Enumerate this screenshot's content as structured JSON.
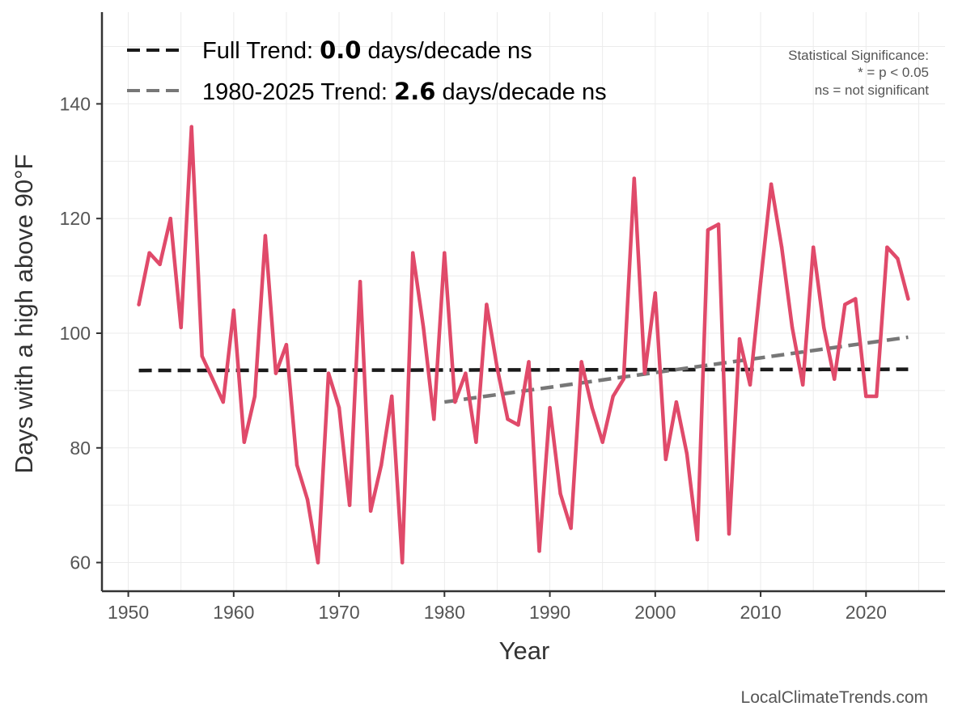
{
  "chart_data": {
    "type": "line",
    "title": "",
    "xlabel": "Year",
    "ylabel": "Days with a high above 90°F",
    "xlim": [
      1947.5,
      2027.5
    ],
    "ylim": [
      55,
      156
    ],
    "xticks": [
      1950,
      1960,
      1970,
      1980,
      1990,
      2000,
      2010,
      2020
    ],
    "yticks": [
      60,
      80,
      100,
      120,
      140
    ],
    "grid": true,
    "series": [
      {
        "color": "#e04a6a",
        "x": [
          1951,
          1952,
          1953,
          1954,
          1955,
          1956,
          1957,
          1958,
          1959,
          1960,
          1961,
          1962,
          1963,
          1964,
          1965,
          1966,
          1967,
          1968,
          1969,
          1970,
          1971,
          1972,
          1973,
          1974,
          1975,
          1976,
          1977,
          1978,
          1979,
          1980,
          1981,
          1982,
          1983,
          1984,
          1985,
          1986,
          1987,
          1988,
          1989,
          1990,
          1991,
          1992,
          1993,
          1994,
          1995,
          1996,
          1997,
          1998,
          1999,
          2000,
          2001,
          2002,
          2003,
          2004,
          2005,
          2006,
          2007,
          2008,
          2009,
          2010,
          2011,
          2012,
          2013,
          2014,
          2015,
          2016,
          2017,
          2018,
          2019,
          2020,
          2021,
          2022,
          2023,
          2024
        ],
        "y": [
          105,
          114,
          112,
          120,
          101,
          136,
          96,
          92,
          88,
          104,
          81,
          89,
          117,
          93,
          98,
          77,
          71,
          60,
          93,
          87,
          70,
          109,
          69,
          77,
          89,
          60,
          114,
          101,
          85,
          114,
          88,
          93,
          81,
          105,
          94,
          85,
          84,
          95,
          62,
          87,
          72,
          66,
          95,
          87,
          81,
          89,
          92,
          127,
          93,
          107,
          78,
          88,
          79,
          64,
          118,
          119,
          65,
          99,
          91,
          109,
          126,
          115,
          101,
          91,
          115,
          101,
          92,
          105,
          106,
          89,
          89,
          115,
          113,
          106
        ]
      }
    ],
    "trends": [
      {
        "label_prefix": "Full Trend: ",
        "value": "0.0",
        "label_suffix": " days/decade ns",
        "color": "#1a1a1a",
        "x": [
          1951,
          2024
        ],
        "y": [
          93.5,
          93.7
        ]
      },
      {
        "label_prefix": "1980-2025 Trend: ",
        "value": "2.6",
        "label_suffix": " days/decade ns",
        "color": "#777777",
        "x": [
          1980,
          2024
        ],
        "y": [
          88.0,
          99.3
        ]
      }
    ],
    "significance_note": [
      "Statistical Significance:",
      "* = p < 0.05",
      "ns = not significant"
    ],
    "legend_position": "top-left"
  },
  "credit": "LocalClimateTrends.com"
}
